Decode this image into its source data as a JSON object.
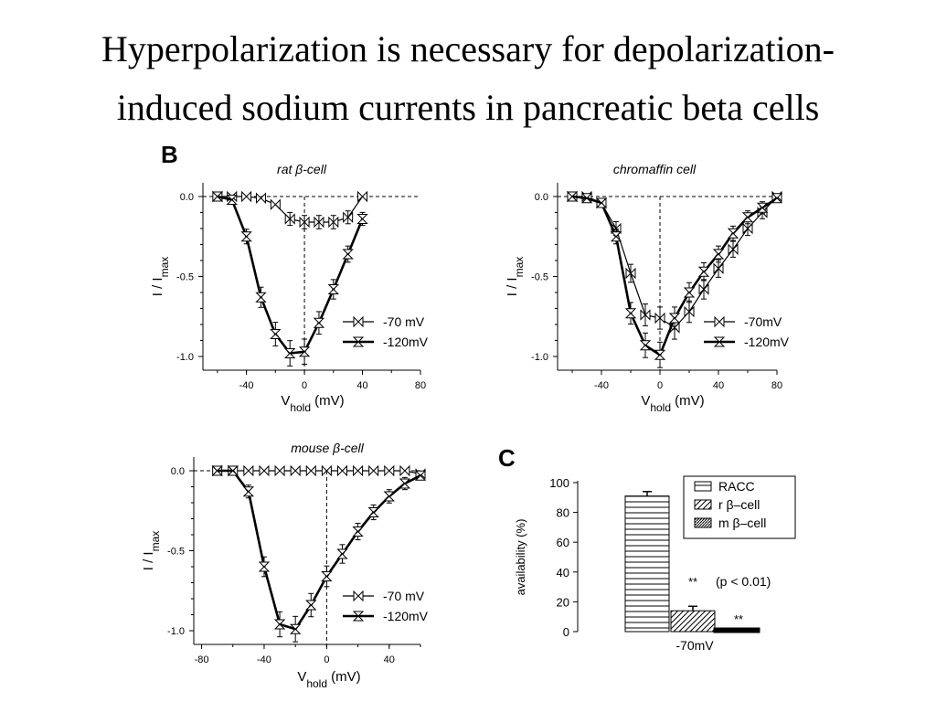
{
  "slide": {
    "title_line1": "Hyperpolarization is necessary for depolarization-",
    "title_line2": "induced  sodium currents in pancreatic beta cells"
  },
  "panel_letters": {
    "b": "B",
    "c": "C"
  },
  "chart_data": [
    {
      "type": "line",
      "title": "rat β-cell",
      "xlabel": "Vhold (mV)",
      "ylabel": "I / Imax",
      "xlim": [
        -70,
        80
      ],
      "ylim": [
        -1.1,
        0.05
      ],
      "xticks": [
        -40,
        0,
        40,
        80
      ],
      "yticks": [
        0.0,
        -0.5,
        -1.0
      ],
      "ytick_labels": [
        "0.0",
        "-0.5",
        "-1.0"
      ],
      "legend_position": "bottom-right",
      "series": [
        {
          "name": "-70 mV",
          "marker": "bowtie-h",
          "x": [
            -60,
            -50,
            -40,
            -30,
            -20,
            -10,
            0,
            10,
            20,
            30,
            40
          ],
          "y": [
            0.0,
            0.0,
            0.0,
            -0.01,
            -0.05,
            -0.14,
            -0.16,
            -0.16,
            -0.16,
            -0.13,
            0.0
          ]
        },
        {
          "name": "-120mV",
          "marker": "bowtie-v",
          "x": [
            -60,
            -50,
            -40,
            -30,
            -20,
            -10,
            0,
            10,
            20,
            30,
            40
          ],
          "y": [
            0.0,
            -0.02,
            -0.25,
            -0.63,
            -0.86,
            -0.98,
            -0.97,
            -0.79,
            -0.58,
            -0.36,
            -0.14
          ]
        }
      ]
    },
    {
      "type": "line",
      "title": "chromaffin cell",
      "xlabel": "Vhold (mV)",
      "ylabel": "I / Imax",
      "xlim": [
        -70,
        80
      ],
      "ylim": [
        -1.1,
        0.05
      ],
      "xticks": [
        -40,
        0,
        40,
        80
      ],
      "yticks": [
        0.0,
        -0.5,
        -1.0
      ],
      "ytick_labels": [
        "0.0",
        "-0.5",
        "-1.0"
      ],
      "legend_position": "bottom-right",
      "series": [
        {
          "name": "-70mV",
          "marker": "bowtie-h",
          "x": [
            -60,
            -50,
            -40,
            -30,
            -20,
            -10,
            0,
            10,
            20,
            30,
            40,
            50,
            60,
            70,
            80
          ],
          "y": [
            0.0,
            0.0,
            -0.04,
            -0.2,
            -0.48,
            -0.74,
            -0.76,
            -0.82,
            -0.72,
            -0.58,
            -0.45,
            -0.33,
            -0.2,
            -0.1,
            0.0
          ]
        },
        {
          "name": "-120mV",
          "marker": "bowtie-v",
          "x": [
            -60,
            -50,
            -40,
            -30,
            -20,
            -10,
            0,
            10,
            20,
            30,
            40,
            50,
            60,
            70,
            80
          ],
          "y": [
            0.0,
            -0.01,
            -0.04,
            -0.25,
            -0.73,
            -0.93,
            -0.99,
            -0.76,
            -0.6,
            -0.47,
            -0.36,
            -0.23,
            -0.13,
            -0.07,
            -0.01
          ]
        }
      ]
    },
    {
      "type": "line",
      "title": "mouse β-cell",
      "xlabel": "Vhold (mV)",
      "ylabel": "I / Imax",
      "xlim": [
        -85,
        60
      ],
      "ylim": [
        -1.1,
        0.05
      ],
      "xticks": [
        -80,
        -40,
        0,
        40
      ],
      "yticks": [
        0.0,
        -0.5,
        -1.0
      ],
      "ytick_labels": [
        "0.0",
        "-0.5",
        "-1.0"
      ],
      "legend_position": "bottom-right",
      "series": [
        {
          "name": "-70 mV",
          "marker": "bowtie-h",
          "x": [
            -70,
            -60,
            -50,
            -40,
            -30,
            -20,
            -10,
            0,
            10,
            20,
            30,
            40,
            50,
            60
          ],
          "y": [
            0.0,
            0.0,
            0.0,
            0.0,
            0.0,
            0.0,
            0.0,
            0.0,
            0.0,
            0.0,
            0.0,
            0.0,
            0.0,
            -0.02
          ]
        },
        {
          "name": "-120mV",
          "marker": "bowtie-v",
          "x": [
            -70,
            -60,
            -50,
            -40,
            -30,
            -20,
            -10,
            0,
            10,
            20,
            30,
            40,
            50,
            60
          ],
          "y": [
            0.0,
            0.0,
            -0.13,
            -0.6,
            -0.96,
            -0.99,
            -0.84,
            -0.66,
            -0.52,
            -0.38,
            -0.26,
            -0.16,
            -0.08,
            -0.03
          ]
        }
      ]
    },
    {
      "type": "bar",
      "categories": [
        "RACC",
        "r β–cell",
        "m β–cell"
      ],
      "values": [
        91,
        14,
        0
      ],
      "errors": [
        3,
        3,
        0
      ],
      "hatch": [
        "horizontal",
        "diagonal",
        "diagonal-dense"
      ],
      "xlabel": "-70mV",
      "ylabel": "availability (%)",
      "ylim": [
        0,
        100
      ],
      "yticks": [
        0,
        20,
        40,
        60,
        80,
        100
      ],
      "legend_position": "top-right",
      "annotations": [
        "**",
        "(p < 0.01)",
        "**"
      ]
    }
  ]
}
